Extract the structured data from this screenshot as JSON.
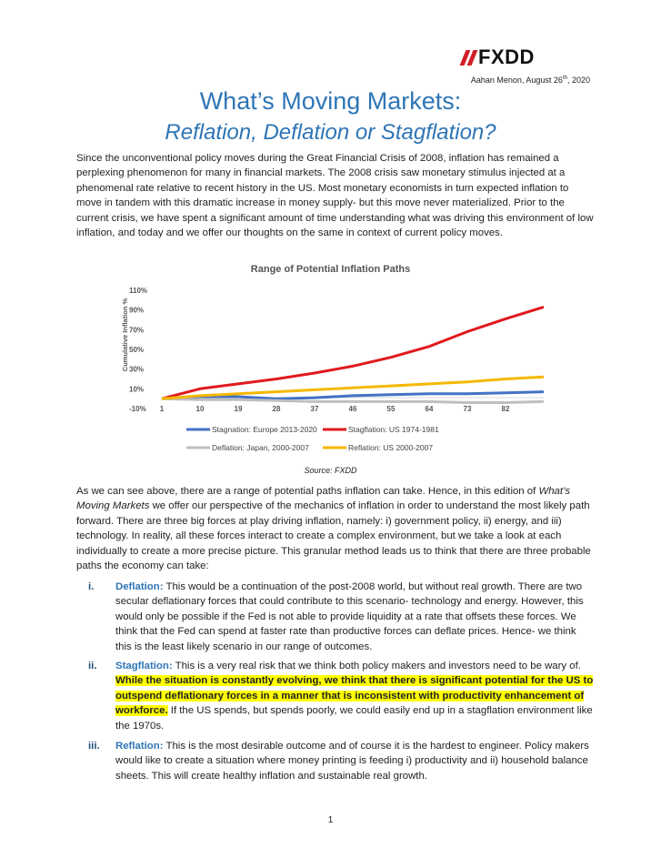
{
  "brand": {
    "name": "FXDD"
  },
  "byline": {
    "author_date": "Aahan Menon, August 26",
    "date_suffix": "th",
    "year": ", 2020"
  },
  "title": "What’s Moving Markets:",
  "subtitle": "Reflation, Deflation or Stagflation?",
  "intro_paragraph": "Since the unconventional policy moves during the Great Financial Crisis of 2008, inflation has remained a perplexing phenomenon for many in financial markets. The 2008 crisis saw monetary stimulus injected at a phenomenal rate relative to recent history in the US. Most monetary economists in turn expected inflation to move in tandem with this dramatic increase in money supply- but this move never materialized. Prior to the current crisis, we have spent a significant amount of time understanding what was driving this environment of low inflation, and today and we offer our thoughts on the same in context of current policy moves.",
  "chart_data": {
    "type": "line",
    "title": "Range of Potential Inflation Paths",
    "ylabel": "Cumulative Inflation %",
    "ylim": [
      -10,
      110
    ],
    "y_ticks": [
      "110%",
      "90%",
      "70%",
      "50%",
      "30%",
      "10%",
      "-10%"
    ],
    "x_ticks": [
      "1",
      "10",
      "19",
      "28",
      "37",
      "46",
      "55",
      "64",
      "73",
      "82"
    ],
    "x": [
      1,
      10,
      19,
      28,
      37,
      46,
      55,
      64,
      73,
      82,
      91
    ],
    "series": [
      {
        "name": "Stagnation: Europe 2013-2020",
        "color": "#4472c4",
        "values": [
          0,
          2,
          2,
          0,
          1,
          3,
          4,
          5,
          5,
          6,
          7
        ]
      },
      {
        "name": "Stagflation: US 1974-1981",
        "color": "#e0191d",
        "values": [
          0,
          10,
          15,
          20,
          26,
          33,
          42,
          53,
          68,
          81,
          93
        ]
      },
      {
        "name": "Deflation: Japan, 2000-2007",
        "color": "#bfbfbf",
        "values": [
          0,
          -1,
          -1,
          -2,
          -3,
          -3,
          -3,
          -3,
          -4,
          -4,
          -3
        ]
      },
      {
        "name": "Reflation: US 2000-2007",
        "color": "#f5b800",
        "values": [
          0,
          3,
          5,
          7,
          9,
          11,
          13,
          15,
          17,
          20,
          22
        ]
      }
    ],
    "legend_position": "bottom",
    "grid": false,
    "source": "Source: FXDD"
  },
  "paragraph2": {
    "part1": "As we can see above, there are a range of potential paths inflation can take. Hence, in this edition of ",
    "italic": "What’s Moving Markets",
    "part2": " we offer our perspective of the mechanics of inflation in order to understand the most likely path forward. There are three big forces at play driving inflation, namely: i) government policy, ii) energy, and iii) technology. In reality, all these forces interact to create a complex environment, but we take a look at each individually to create a more precise picture. This granular method leads us to think that there are three probable paths the economy can take:"
  },
  "scenarios": [
    {
      "numeral": "i.",
      "term": "Deflation:",
      "text": " This would be a continuation of the post-2008 world, but without real growth. There are two secular deflationary forces that could contribute to this scenario- technology and energy. However, this would only be possible if the Fed is not able to provide liquidity at a rate that offsets these forces. We think that the Fed can spend at faster rate than productive forces can deflate prices. Hence- we think this is the least likely scenario in our range of outcomes."
    },
    {
      "numeral": "ii.",
      "term": "Stagflation:",
      "text": " This is a very real risk that we think both policy makers and investors need to be wary of. ",
      "highlight": "While the situation is constantly evolving, we think that there is significant potential for the US to outspend deflationary forces in a manner that is inconsistent with productivity enhancement of workforce.",
      "text_after": " If the US spends, but spends poorly, we could easily end up in a stagflation environment like the 1970s."
    },
    {
      "numeral": "iii.",
      "term": "Reflation:",
      "text": " This is the most desirable outcome and of course it is the hardest to engineer. Policy makers would like to create a situation where money printing is feeding i) productivity and ii) household balance sheets. This will create healthy inflation and sustainable real growth."
    }
  ],
  "page_number": "1"
}
